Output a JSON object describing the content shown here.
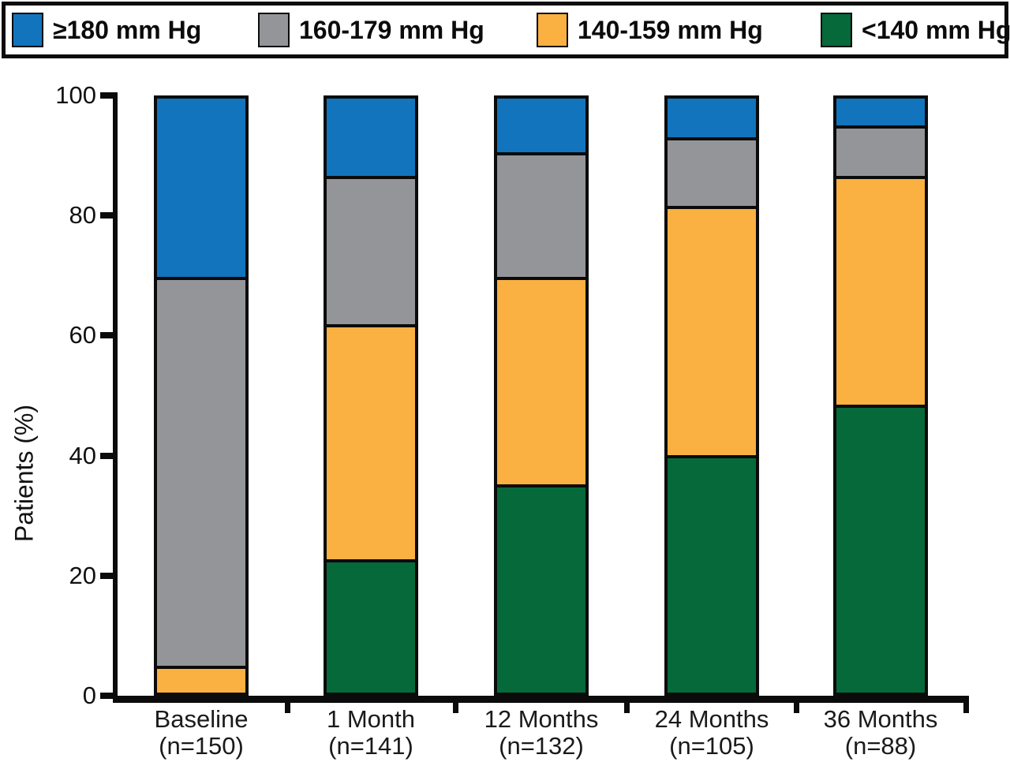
{
  "figure": {
    "background": "#FFFFFF",
    "line_color": "#0B0B0B",
    "text_color": "#111111"
  },
  "legend": {
    "position": "top",
    "items": [
      {
        "key": "ge-180",
        "label": "≥180 mm Hg",
        "color": "#1274BC"
      },
      {
        "key": "160-179",
        "label": "160-179 mm Hg",
        "color": "#949598"
      },
      {
        "key": "140-159",
        "label": "140-159 mm Hg",
        "color": "#FBB042"
      },
      {
        "key": "lt-140",
        "label": "<140 mm Hg",
        "color": "#06693A"
      }
    ]
  },
  "chart_data": {
    "type": "bar",
    "stacked": true,
    "stack_order": "first series at top of each bar",
    "title": "",
    "xlabel": "",
    "ylabel": "Patients (%)",
    "ylim": [
      0,
      100
    ],
    "yticks": [
      0,
      20,
      40,
      60,
      80,
      100
    ],
    "grid": false,
    "legend_position": "top",
    "categories": [
      "Baseline",
      "1 Month",
      "12 Months",
      "24 Months",
      "36 Months"
    ],
    "category_sublabels": [
      "(n=150)",
      "(n=141)",
      "(n=132)",
      "(n=105)",
      "(n=88)"
    ],
    "series": [
      {
        "key": "ge-180",
        "name": "≥180 mm Hg",
        "color": "#1274BC",
        "values": [
          30,
          13,
          9,
          6.5,
          4.5
        ]
      },
      {
        "key": "160-179",
        "name": "160-179 mm Hg",
        "color": "#949598",
        "values": [
          65.5,
          25,
          21,
          11.5,
          8.5
        ]
      },
      {
        "key": "140-159",
        "name": "140-159 mm Hg",
        "color": "#FBB042",
        "values": [
          4.5,
          39.5,
          35,
          42,
          38.5
        ]
      },
      {
        "key": "lt-140",
        "name": "<140 mm Hg",
        "color": "#06693A",
        "values": [
          0,
          22.5,
          35,
          40,
          48.5
        ]
      }
    ]
  }
}
